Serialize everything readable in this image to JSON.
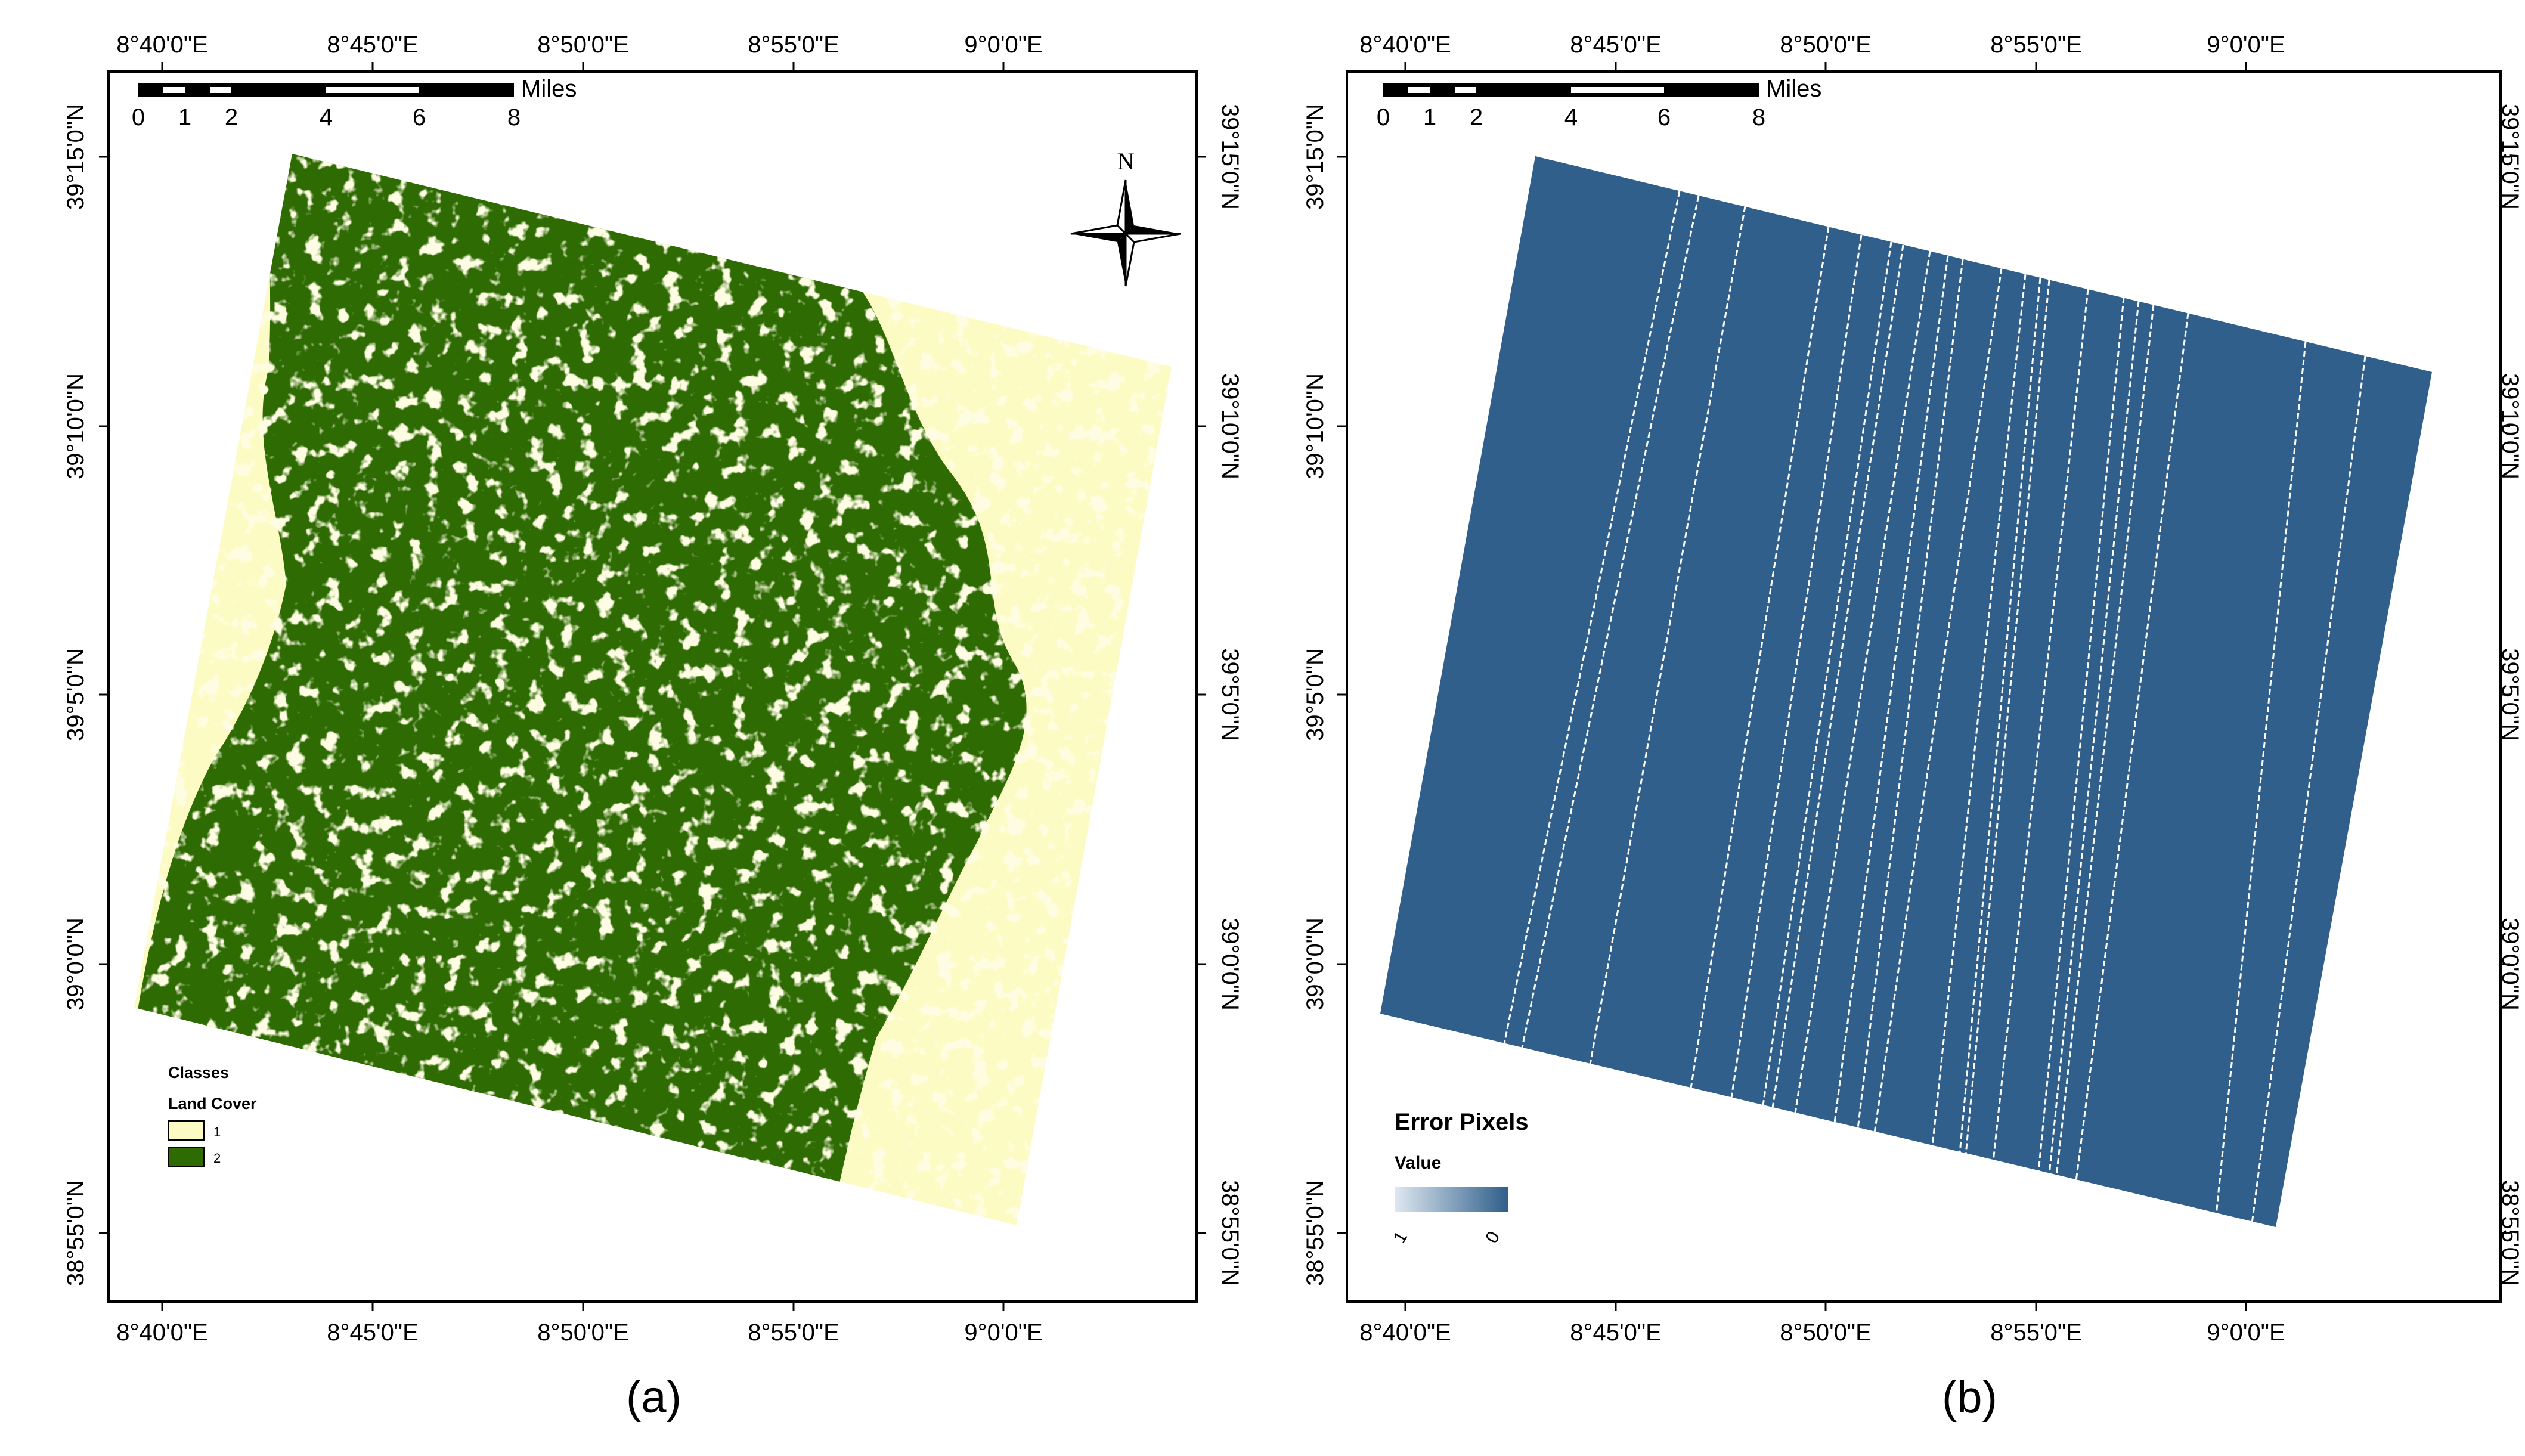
{
  "panels": [
    {
      "caption": "(a)",
      "lon_ticks": [
        "8°40'0\"E",
        "8°45'0\"E",
        "8°50'0\"E",
        "8°55'0\"E",
        "9°0'0\"E"
      ],
      "lat_ticks": [
        "39°15'0\"N",
        "39°10'0\"N",
        "39°5'0\"N",
        "39°0'0\"N",
        "38°55'0\"N"
      ],
      "scale_bar": {
        "labels": [
          "0",
          "1",
          "2",
          "4",
          "6",
          "8"
        ],
        "unit": "Miles"
      },
      "north_arrow": {
        "label": "N"
      },
      "legend": {
        "title": "Classes",
        "subtitle": "Land Cover",
        "items": [
          {
            "label": "1",
            "color": "#fdfbc4"
          },
          {
            "label": "2",
            "color": "#2e6b03"
          }
        ]
      }
    },
    {
      "caption": "(b)",
      "lon_ticks": [
        "8°40'0\"E",
        "8°45'0\"E",
        "8°50'0\"E",
        "8°55'0\"E",
        "9°0'0\"E"
      ],
      "lat_ticks": [
        "39°15'0\"N",
        "39°10'0\"N",
        "39°5'0\"N",
        "39°0'0\"N",
        "38°55'0\"N"
      ],
      "scale_bar": {
        "labels": [
          "0",
          "1",
          "2",
          "4",
          "6",
          "8"
        ],
        "unit": "Miles"
      },
      "legend": {
        "title": "Error Pixels",
        "subtitle": "Value",
        "ramp_labels": [
          "1",
          "0"
        ],
        "ramp_colors": [
          "#dfe8f1",
          "#2f5f8a"
        ]
      }
    }
  ],
  "colors": {
    "land_cover_1": "#fdfbc4",
    "land_cover_2": "#2e6b03",
    "error_fill": "#2f5f8a",
    "frame": "#000000"
  }
}
